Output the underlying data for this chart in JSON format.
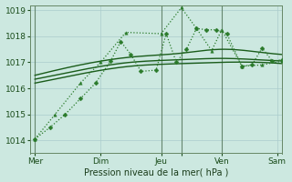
{
  "bg_color": "#cce8e0",
  "grid_color": "#aacccc",
  "dark_green": "#1a5c1a",
  "light_green": "#2a7a2a",
  "xlabel": "Pression niveau de la mer( hPa )",
  "xlim": [
    0,
    100
  ],
  "ylim": [
    1013.5,
    1019.2
  ],
  "yticks": [
    1014,
    1015,
    1016,
    1017,
    1018,
    1019
  ],
  "xtick_positions": [
    2,
    28,
    52,
    60,
    76,
    98
  ],
  "xtick_labels": [
    "Mer",
    "Dim",
    "Jeu",
    "",
    "Ven",
    "Sam"
  ],
  "vlines": [
    2,
    52,
    60,
    76
  ],
  "vline_color": "#446644",
  "series_dotted1": {
    "x": [
      2,
      8,
      14,
      20,
      26,
      32,
      36,
      40,
      44,
      50,
      54,
      58,
      62,
      66,
      70,
      74,
      78,
      84,
      88,
      92,
      96,
      100
    ],
    "y": [
      1014.05,
      1014.5,
      1015.0,
      1015.6,
      1016.2,
      1017.05,
      1017.8,
      1017.3,
      1016.65,
      1016.7,
      1018.1,
      1017.0,
      1017.5,
      1018.3,
      1018.25,
      1018.25,
      1018.1,
      1016.85,
      1016.9,
      1017.55,
      1017.05,
      1017.1
    ],
    "color": "#2a7a2a",
    "lw": 0.9,
    "ms": 2.5
  },
  "series_dotted2": {
    "x": [
      2,
      10,
      20,
      28,
      38,
      52,
      60,
      66,
      72,
      76,
      84,
      92,
      100
    ],
    "y": [
      1014.05,
      1015.0,
      1016.2,
      1017.0,
      1018.15,
      1018.1,
      1019.1,
      1018.3,
      1017.45,
      1018.25,
      1016.85,
      1016.9,
      1017.05
    ],
    "color": "#2a7a2a",
    "lw": 0.9,
    "ms": 2.5
  },
  "smooth1": {
    "x": [
      2,
      20,
      40,
      60,
      76,
      90,
      100
    ],
    "y": [
      1016.2,
      1016.55,
      1016.85,
      1016.95,
      1017.0,
      1017.0,
      1016.95
    ],
    "color": "#1a5c1a",
    "lw": 1.0
  },
  "smooth2": {
    "x": [
      2,
      20,
      40,
      60,
      76,
      90,
      100
    ],
    "y": [
      1016.35,
      1016.7,
      1017.0,
      1017.1,
      1017.15,
      1017.1,
      1017.05
    ],
    "color": "#1a5c1a",
    "lw": 1.0
  },
  "smooth3": {
    "x": [
      2,
      20,
      40,
      60,
      76,
      90,
      100
    ],
    "y": [
      1016.5,
      1016.9,
      1017.2,
      1017.35,
      1017.5,
      1017.4,
      1017.3
    ],
    "color": "#1a5c1a",
    "lw": 1.0
  }
}
